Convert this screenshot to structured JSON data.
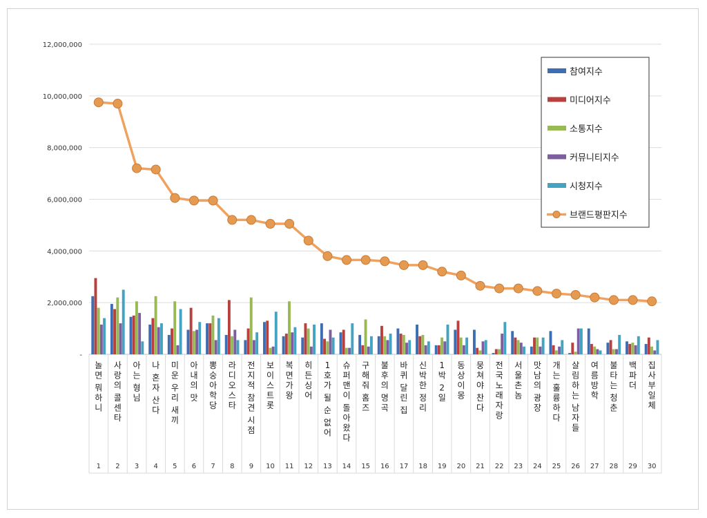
{
  "chart_data": {
    "type": "bar",
    "combo": "bar+line",
    "ylim": [
      0,
      12000000
    ],
    "yticks": [
      "-",
      "2,000,000",
      "4,000,000",
      "6,000,000",
      "8,000,000",
      "10,000,000",
      "12,000,000"
    ],
    "grid": true,
    "legend_position": "top-right",
    "numbers": [
      "1",
      "2",
      "3",
      "4",
      "5",
      "6",
      "7",
      "8",
      "9",
      "10",
      "11",
      "12",
      "13",
      "14",
      "15",
      "16",
      "17",
      "18",
      "19",
      "20",
      "21",
      "22",
      "23",
      "24",
      "25",
      "26",
      "27",
      "28",
      "29",
      "30"
    ],
    "categories": [
      "놀면 뭐하니",
      "사랑의 콜센타",
      "아는 형님",
      "나 혼자 산다",
      "미운 우리 새끼",
      "아내의 맛",
      "뽕숭아학당",
      "라디오스타",
      "전지적 참견 시점",
      "보이스트롯",
      "복면가왕",
      "히든싱어",
      "1호가 될 순 없어",
      "슈퍼맨이 돌아왔다",
      "구해줘 홈즈",
      "불후의 명곡",
      "바퀴 달린 집",
      "신박한 정리",
      "1박 2일",
      "동상이몽",
      "뭉쳐야 찬다",
      "전국노래자랑",
      "서울촌놈",
      "맛남의 광장",
      "개는 훌륭하다",
      "살림하는 남자들",
      "여름방학",
      "불타는 청춘",
      "백파더",
      "집사부일체"
    ],
    "series": [
      {
        "name": "참여지수",
        "color": "#3d6eb3",
        "values": [
          2250000,
          1950000,
          1450000,
          1150000,
          750000,
          950000,
          1200000,
          750000,
          550000,
          1250000,
          700000,
          650000,
          1200000,
          850000,
          750000,
          700000,
          1000000,
          1150000,
          350000,
          950000,
          950000,
          50000,
          900000,
          300000,
          900000,
          50000,
          1000000,
          450000,
          500000,
          400000
        ]
      },
      {
        "name": "미디어지수",
        "color": "#b8413f",
        "values": [
          2950000,
          1750000,
          1500000,
          1400000,
          1000000,
          1800000,
          1200000,
          2100000,
          1000000,
          1300000,
          800000,
          1200000,
          600000,
          950000,
          350000,
          1100000,
          800000,
          700000,
          350000,
          1300000,
          250000,
          200000,
          650000,
          650000,
          350000,
          450000,
          400000,
          550000,
          400000,
          650000
        ]
      },
      {
        "name": "소통지수",
        "color": "#98b954",
        "values": [
          1800000,
          2200000,
          2050000,
          2250000,
          2050000,
          900000,
          1500000,
          700000,
          2200000,
          250000,
          2050000,
          1000000,
          500000,
          250000,
          1350000,
          700000,
          750000,
          750000,
          650000,
          650000,
          150000,
          200000,
          550000,
          650000,
          150000,
          100000,
          300000,
          200000,
          450000,
          300000
        ]
      },
      {
        "name": "커뮤니티지수",
        "color": "#7d5fa0",
        "values": [
          1150000,
          1200000,
          1600000,
          1050000,
          350000,
          950000,
          550000,
          950000,
          550000,
          300000,
          850000,
          300000,
          950000,
          250000,
          300000,
          550000,
          450000,
          350000,
          500000,
          350000,
          500000,
          800000,
          450000,
          300000,
          300000,
          1000000,
          200000,
          200000,
          350000,
          150000
        ]
      },
      {
        "name": "시청지수",
        "color": "#45a3c2",
        "values": [
          1400000,
          2500000,
          500000,
          1200000,
          1750000,
          1250000,
          1400000,
          550000,
          850000,
          1650000,
          1050000,
          1150000,
          650000,
          1200000,
          700000,
          800000,
          550000,
          500000,
          1150000,
          650000,
          550000,
          1250000,
          300000,
          650000,
          550000,
          1000000,
          150000,
          750000,
          700000,
          550000
        ]
      },
      {
        "name": "브랜드평판지수",
        "color": "#f0a15e",
        "marker": "#e59a52",
        "line": true,
        "values": [
          9750000,
          9700000,
          7200000,
          7150000,
          6050000,
          5950000,
          5950000,
          5200000,
          5200000,
          5050000,
          5050000,
          4400000,
          3800000,
          3650000,
          3650000,
          3600000,
          3450000,
          3450000,
          3200000,
          3050000,
          2650000,
          2550000,
          2550000,
          2450000,
          2350000,
          2300000,
          2200000,
          2100000,
          2100000,
          2050000
        ]
      }
    ]
  }
}
